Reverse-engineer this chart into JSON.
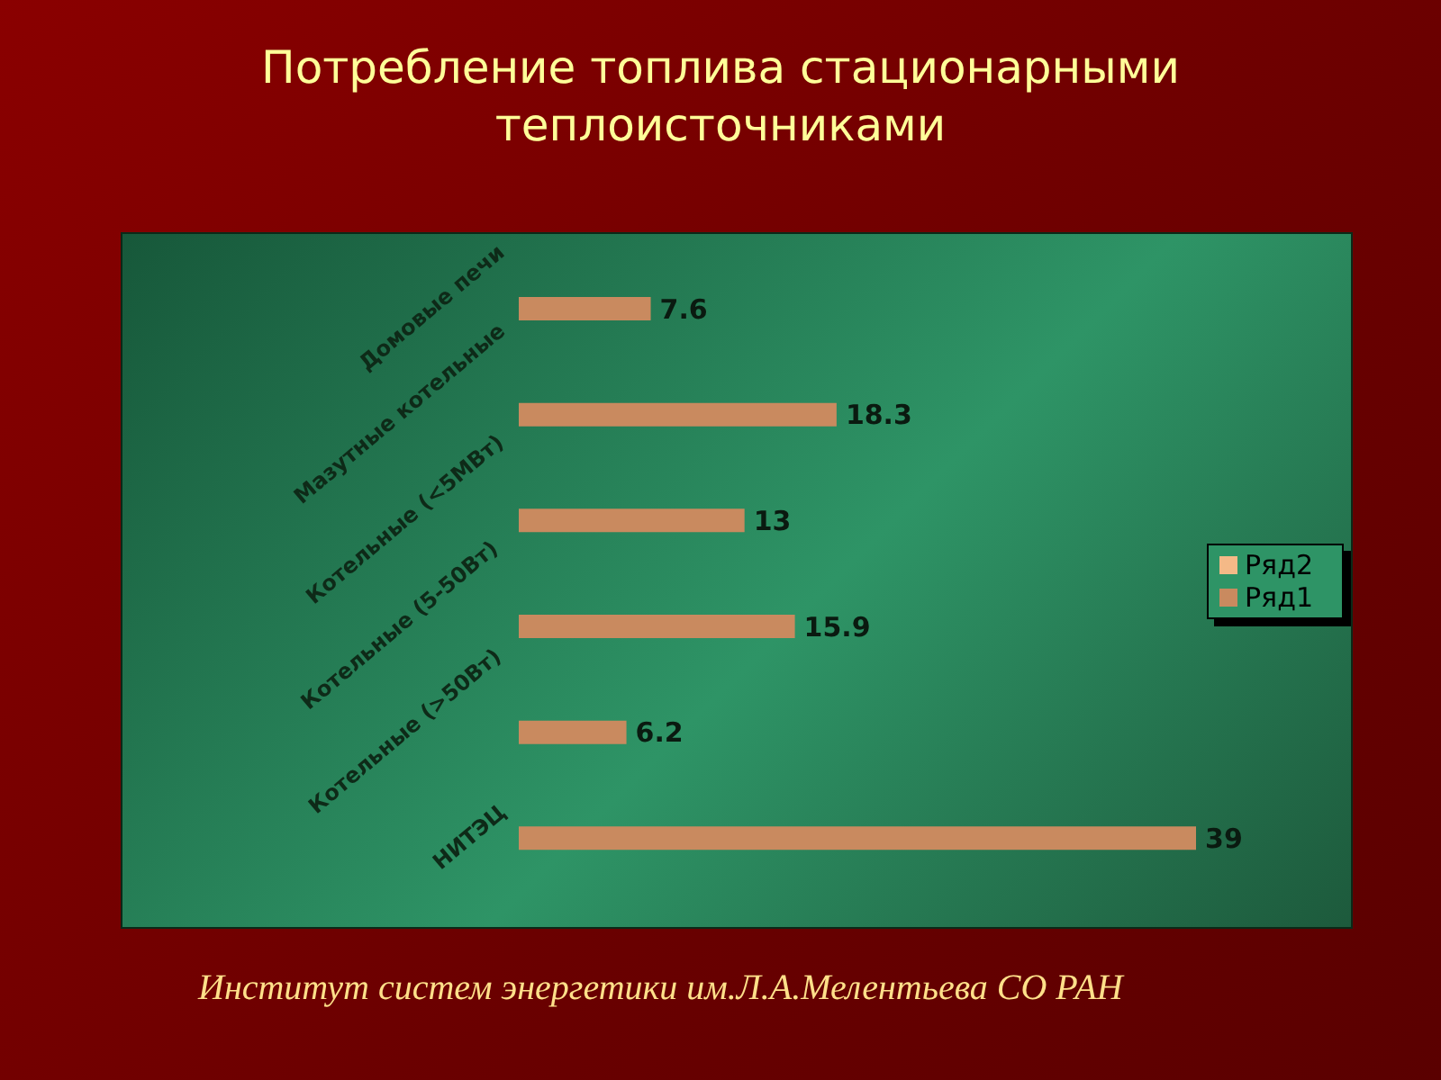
{
  "chart_data": {
    "type": "bar",
    "orientation": "horizontal",
    "title": "Потребление топлива стационарными теплоисточниками",
    "categories": [
      "Домовые печи",
      "Мазутные котельные",
      "Котельные (<5МВт)",
      "Котельные (5-50Вт)",
      "Котельные (>50Вт)",
      "НИТЭЦ"
    ],
    "series": [
      {
        "name": "Ряд2",
        "color": "#f4b987",
        "values": [
          null,
          null,
          null,
          null,
          null,
          null
        ]
      },
      {
        "name": "Ряд1",
        "color": "#c98a5f",
        "values": [
          7.6,
          18.3,
          13,
          15.9,
          6.2,
          39
        ]
      }
    ],
    "data_labels": true,
    "legend": "right",
    "grid": false,
    "annotations": [
      "Институт систем энергетики им.Л.А.Мелентьева СО РАН"
    ]
  }
}
